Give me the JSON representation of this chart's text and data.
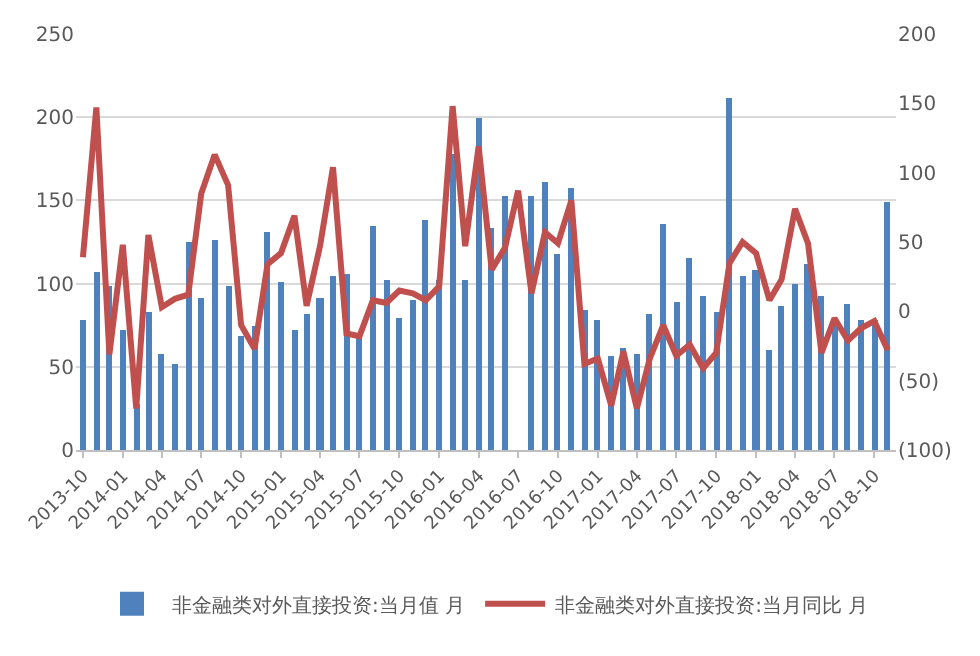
{
  "chart_data": {
    "type": "bar",
    "x": [
      "2013-10",
      "2013-11",
      "2013-12",
      "2014-01",
      "2014-02",
      "2014-03",
      "2014-04",
      "2014-05",
      "2014-06",
      "2014-07",
      "2014-08",
      "2014-09",
      "2014-10",
      "2014-11",
      "2014-12",
      "2015-01",
      "2015-02",
      "2015-03",
      "2015-04",
      "2015-05",
      "2015-06",
      "2015-07",
      "2015-08",
      "2015-09",
      "2015-10",
      "2015-11",
      "2015-12",
      "2016-01",
      "2016-02",
      "2016-03",
      "2016-04",
      "2016-05",
      "2016-06",
      "2016-07",
      "2016-08",
      "2016-09",
      "2016-10",
      "2016-11",
      "2016-12",
      "2017-01",
      "2017-02",
      "2017-03",
      "2017-04",
      "2017-05",
      "2017-06",
      "2017-07",
      "2017-08",
      "2017-09",
      "2017-10",
      "2017-11",
      "2017-12",
      "2018-01",
      "2018-02",
      "2018-03",
      "2018-04",
      "2018-05",
      "2018-06",
      "2018-07",
      "2018-08",
      "2018-09",
      "2018-10",
      "2018-11"
    ],
    "series": [
      {
        "name": "非金融类对外直接投资:当月值 月",
        "color": "#4f81bd",
        "values": [
          78,
          107,
          99,
          72,
          28,
          83,
          58,
          52,
          125,
          91,
          126,
          98,
          69,
          75,
          131,
          101,
          72,
          82,
          91,
          105,
          106,
          68,
          135,
          102,
          79,
          90,
          138,
          102,
          178,
          102,
          200,
          134,
          153,
          null,
          153,
          161,
          118,
          157,
          84,
          78,
          57,
          61,
          58,
          82,
          136,
          89,
          115,
          93,
          83,
          212,
          105,
          108,
          60,
          86,
          100,
          112,
          93,
          77,
          88,
          78,
          78,
          149
        ]
      },
      {
        "name": "非金融类对外直接投资:当月同比 月",
        "type": "line",
        "axis": "y2",
        "color": "#c0504d",
        "values": [
          39,
          147,
          -31,
          48,
          -70,
          55,
          3,
          9,
          12,
          85,
          113,
          91,
          -10,
          -27,
          34,
          42,
          69,
          4,
          47,
          104,
          -16,
          -18,
          8,
          6,
          15,
          13,
          8,
          18,
          148,
          47,
          119,
          30,
          46,
          87,
          13,
          57,
          49,
          80,
          -38,
          -34,
          -68,
          -29,
          -70,
          -34,
          -10,
          -32,
          -24,
          -41,
          -30,
          35,
          50,
          42,
          8,
          23,
          74,
          49,
          -30,
          -5,
          -21,
          -12,
          -7,
          -28
        ]
      }
    ],
    "xlim": [
      "2013-09-15",
      "2018-11-20"
    ],
    "xticks": [
      "2013-10",
      "2014-01",
      "2014-04",
      "2014-07",
      "2014-10",
      "2015-01",
      "2015-04",
      "2015-07",
      "2015-10",
      "2016-01",
      "2016-04",
      "2016-07",
      "2016-10",
      "2017-01",
      "2017-04",
      "2017-07",
      "2017-10",
      "2018-01",
      "2018-04",
      "2018-07",
      "2018-10"
    ],
    "ylim": [
      0,
      250
    ],
    "yticks": [
      0,
      50,
      100,
      150,
      200,
      250
    ],
    "y2lim": [
      -100,
      200
    ],
    "y2ticks": [
      {
        "value": -100,
        "label": "(100)"
      },
      {
        "value": -50,
        "label": "(50)"
      },
      0,
      50,
      100,
      150,
      200
    ],
    "grid": "y",
    "legend": "bottom"
  }
}
